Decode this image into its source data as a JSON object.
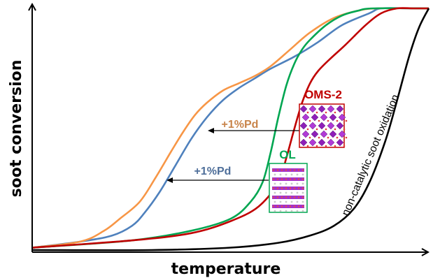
{
  "chart_data": {
    "type": "line",
    "xlabel": "temperature",
    "ylabel": "soot conversion",
    "xlim": [
      0,
      100
    ],
    "ylim": [
      0,
      100
    ],
    "grid": false,
    "series": [
      {
        "color": "#4f81bd",
        "x": [
          0,
          12,
          20,
          25,
          28,
          32,
          36,
          40,
          44,
          48,
          52,
          56,
          60,
          66,
          72,
          78,
          85,
          88,
          95,
          100
        ],
        "y": [
          1,
          3.5,
          6,
          10,
          15,
          24,
          35,
          46,
          55,
          62,
          67,
          71,
          75,
          80,
          86,
          93,
          98,
          100,
          100,
          100
        ]
      },
      {
        "color": "#f79646",
        "x": [
          0,
          12,
          18,
          22,
          27,
          31,
          35,
          38,
          41,
          44,
          48,
          52,
          56,
          60,
          65,
          70,
          76,
          82,
          87,
          100
        ],
        "y": [
          1,
          3.5,
          8,
          13,
          20,
          30,
          41,
          49,
          56,
          61,
          66,
          69,
          72,
          76,
          83,
          90,
          96,
          99,
          100,
          100
        ]
      },
      {
        "color": "#00a651",
        "x": [
          0,
          25,
          40,
          50,
          55,
          58,
          60,
          62,
          64,
          66,
          68,
          70,
          74,
          78,
          82,
          86,
          100
        ],
        "y": [
          1,
          4,
          8,
          13,
          20,
          28,
          40,
          55,
          68,
          77,
          83,
          87,
          93,
          97,
          99,
          100,
          100
        ]
      },
      {
        "color": "#c00000",
        "x": [
          0,
          25,
          40,
          50,
          57,
          62,
          64,
          66,
          68,
          70,
          72,
          75,
          79,
          84,
          88,
          92,
          96,
          100
        ],
        "y": [
          1,
          4,
          7,
          12,
          18,
          28,
          38,
          50,
          61,
          69,
          74,
          79,
          85,
          93,
          98,
          100,
          100,
          100
        ]
      },
      {
        "color": "#000000",
        "x": [
          0,
          30,
          50,
          62,
          70,
          76,
          81,
          85,
          89,
          92,
          95,
          97.5,
          100
        ],
        "y": [
          0,
          0,
          1,
          3,
          6,
          10,
          17,
          28,
          45,
          62,
          80,
          92,
          100
        ]
      }
    ],
    "annotations": [
      {
        "text": "OMS-2",
        "color": "#c00000"
      },
      {
        "text": "+1%Pd",
        "color": "#c8844a"
      },
      {
        "text": "OL",
        "color": "#00a651"
      },
      {
        "text": "+1%Pd",
        "color": "#4f6f9a"
      },
      {
        "text": "non-catalytic soot oxidation",
        "color": "#000000"
      }
    ]
  }
}
